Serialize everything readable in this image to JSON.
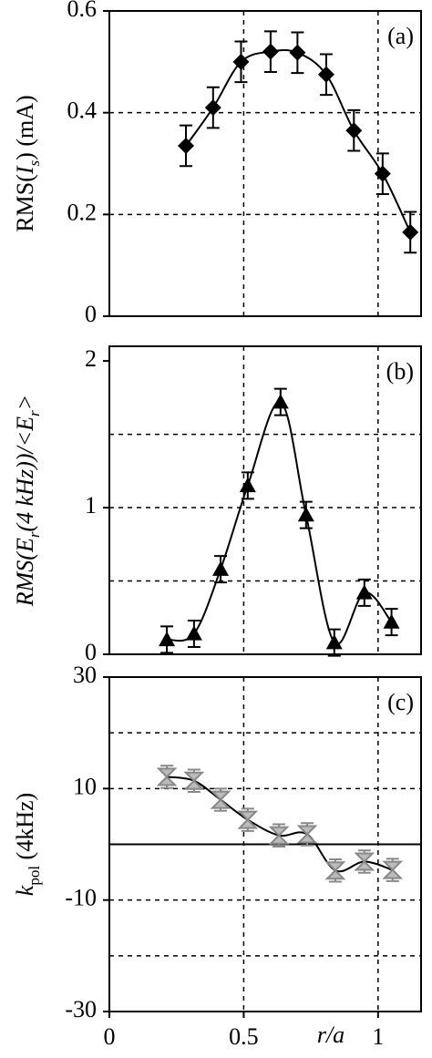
{
  "chart_data": [
    {
      "type": "line",
      "annotation": "(a)",
      "ylabel": [
        {
          "text": "RMS(",
          "style": "normal"
        },
        {
          "text": "I",
          "style": "italic"
        },
        {
          "text": "s",
          "style": "italic-sub"
        },
        {
          "text": ")  (mA)",
          "style": "normal"
        }
      ],
      "x": [
        0.285,
        0.386,
        0.49,
        0.6,
        0.7,
        0.807,
        0.91,
        1.017,
        1.12
      ],
      "series": [
        {
          "color": "#000000",
          "marker": "diamond",
          "values": [
            0.335,
            0.41,
            0.5,
            0.52,
            0.518,
            0.475,
            0.365,
            0.28,
            0.165
          ],
          "errors": [
            0.04,
            0.04,
            0.04,
            0.04,
            0.04,
            0.04,
            0.04,
            0.04,
            0.04
          ]
        }
      ],
      "xlim": [
        0,
        1.16
      ],
      "xgrid": [
        0.5,
        1
      ],
      "ylim": [
        0,
        0.6
      ],
      "yticks": [
        0,
        0.2,
        0.4,
        0.6
      ],
      "ygrid": [
        0.2,
        0.4
      ]
    },
    {
      "type": "line",
      "annotation": "(b)",
      "ylabel": [
        {
          "text": "RMS(",
          "style": "italic"
        },
        {
          "text": "E",
          "style": "italic"
        },
        {
          "text": "r",
          "style": "italic-sub"
        },
        {
          "text": "(4 kHz))/<",
          "style": "italic"
        },
        {
          "text": "E",
          "style": "italic"
        },
        {
          "text": "r",
          "style": "italic-sub"
        },
        {
          "text": ">",
          "style": "italic"
        }
      ],
      "x": [
        0.214,
        0.315,
        0.414,
        0.515,
        0.637,
        0.732,
        0.837,
        0.949,
        1.05
      ],
      "series": [
        {
          "color": "#000000",
          "marker": "triangle",
          "values": [
            0.1,
            0.14,
            0.58,
            1.15,
            1.72,
            0.95,
            0.08,
            0.42,
            0.22
          ],
          "errors": [
            0.09,
            0.09,
            0.09,
            0.09,
            0.09,
            0.09,
            0.09,
            0.09,
            0.09
          ]
        }
      ],
      "xlim": [
        0,
        1.16
      ],
      "xgrid": [
        0.5,
        1
      ],
      "ylim": [
        0,
        2.1
      ],
      "yticks": [
        0,
        1,
        2
      ],
      "ygrid": [
        0.5,
        1,
        1.5
      ]
    },
    {
      "type": "line",
      "annotation": "(c)",
      "ylabel": [
        {
          "text": "k",
          "style": "italic"
        },
        {
          "text": "pol",
          "style": "sub"
        },
        {
          "text": " (4kHz)",
          "style": "normal"
        }
      ],
      "x": [
        0.214,
        0.315,
        0.414,
        0.515,
        0.631,
        0.736,
        0.841,
        0.949,
        1.054
      ],
      "series": [
        {
          "color": "#888888",
          "marker": "hourglass",
          "values": [
            12.1,
            11.4,
            8,
            4.4,
            1.6,
            1.8,
            -4.7,
            -3.1,
            -4.6
          ],
          "errors": [
            2,
            2,
            2,
            2,
            2,
            2,
            2,
            2,
            2
          ]
        }
      ],
      "xlim": [
        0,
        1.16
      ],
      "xgrid": [
        0.5,
        1
      ],
      "xticks": [
        0,
        0.5,
        1
      ],
      "xlabel": "r/a",
      "ylim": [
        -30,
        30
      ],
      "yticks": [
        -30,
        -10,
        10,
        30
      ],
      "ygrid": [
        -20,
        -10,
        10,
        20
      ],
      "zero_line": true
    }
  ]
}
